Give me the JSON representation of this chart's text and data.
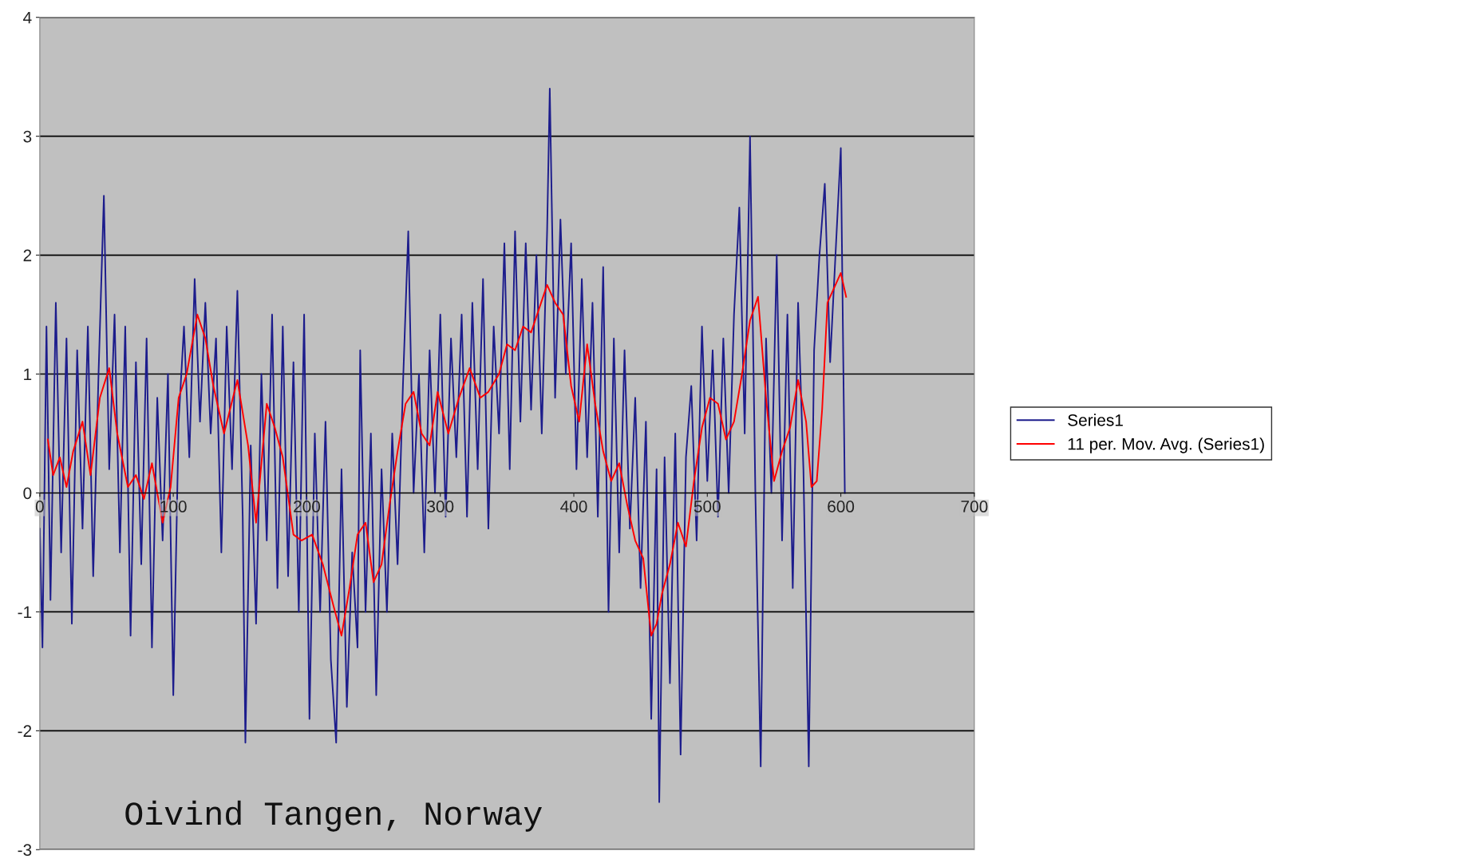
{
  "chart_data": {
    "type": "line",
    "series": [
      {
        "name": "Series1",
        "color": "#1c1c8c",
        "x": [
          0,
          2,
          5,
          8,
          12,
          16,
          20,
          24,
          28,
          32,
          36,
          40,
          44,
          48,
          52,
          56,
          60,
          64,
          68,
          72,
          76,
          80,
          84,
          88,
          92,
          96,
          100,
          104,
          108,
          112,
          116,
          120,
          124,
          128,
          132,
          136,
          140,
          144,
          148,
          152,
          154,
          158,
          162,
          166,
          170,
          174,
          178,
          182,
          186,
          190,
          194,
          198,
          202,
          206,
          210,
          214,
          218,
          222,
          226,
          230,
          234,
          238,
          240,
          244,
          248,
          252,
          256,
          260,
          264,
          268,
          272,
          276,
          280,
          284,
          288,
          292,
          296,
          300,
          304,
          308,
          312,
          316,
          320,
          324,
          328,
          332,
          336,
          340,
          344,
          348,
          352,
          356,
          360,
          364,
          368,
          372,
          376,
          380,
          382,
          386,
          390,
          394,
          398,
          402,
          406,
          410,
          414,
          418,
          422,
          426,
          430,
          434,
          438,
          442,
          446,
          450,
          454,
          458,
          462,
          464,
          468,
          472,
          476,
          480,
          484,
          488,
          492,
          496,
          500,
          504,
          508,
          512,
          516,
          520,
          524,
          528,
          532,
          536,
          540,
          544,
          548,
          552,
          556,
          560,
          564,
          568,
          572,
          576,
          580,
          584,
          588,
          592,
          596,
          600,
          603
        ],
        "values": [
          -0.3,
          -1.3,
          1.4,
          -0.9,
          1.6,
          -0.5,
          1.3,
          -1.1,
          1.2,
          -0.3,
          1.4,
          -0.7,
          1.0,
          2.5,
          0.2,
          1.5,
          -0.5,
          1.4,
          -1.2,
          1.1,
          -0.6,
          1.3,
          -1.3,
          0.8,
          -0.4,
          1.0,
          -1.7,
          0.6,
          1.4,
          0.3,
          1.8,
          0.6,
          1.6,
          0.5,
          1.3,
          -0.5,
          1.4,
          0.2,
          1.7,
          -0.2,
          -2.1,
          0.4,
          -1.1,
          1.0,
          -0.4,
          1.5,
          -0.8,
          1.4,
          -0.7,
          1.1,
          -1.0,
          1.5,
          -1.9,
          0.5,
          -1.0,
          0.6,
          -1.4,
          -2.1,
          0.2,
          -1.8,
          -0.5,
          -1.3,
          1.2,
          -1.0,
          0.5,
          -1.7,
          0.2,
          -1.0,
          0.5,
          -0.6,
          0.9,
          2.2,
          0.0,
          1.0,
          -0.5,
          1.2,
          0.0,
          1.5,
          -0.2,
          1.3,
          0.3,
          1.5,
          -0.2,
          1.6,
          0.2,
          1.8,
          -0.3,
          1.4,
          0.5,
          2.1,
          0.2,
          2.2,
          0.6,
          2.1,
          0.7,
          2.0,
          0.5,
          2.2,
          3.4,
          0.8,
          2.3,
          1.0,
          2.1,
          0.2,
          1.8,
          0.3,
          1.6,
          -0.2,
          1.9,
          -1.0,
          1.3,
          -0.5,
          1.2,
          -0.3,
          0.8,
          -0.8,
          0.6,
          -1.9,
          0.2,
          -2.6,
          0.3,
          -1.6,
          0.5,
          -2.2,
          0.3,
          0.9,
          -0.4,
          1.4,
          0.1,
          1.2,
          -0.2,
          1.3,
          0.0,
          1.5,
          2.4,
          0.5,
          3.0,
          0.0,
          -2.3,
          1.3,
          0.0,
          2.0,
          -0.4,
          1.5,
          -0.8,
          1.6,
          0.2,
          -2.3,
          1.2,
          2.0,
          2.6,
          1.1,
          2.0,
          2.9,
          0.0
        ]
      },
      {
        "name": "11 per. Mov. Avg. (Series1)",
        "color": "#ff0000",
        "x": [
          6,
          10,
          15,
          20,
          25,
          32,
          38,
          45,
          52,
          58,
          66,
          72,
          78,
          84,
          92,
          98,
          104,
          110,
          118,
          124,
          130,
          138,
          148,
          156,
          162,
          170,
          176,
          182,
          190,
          196,
          204,
          212,
          220,
          226,
          232,
          238,
          244,
          250,
          256,
          262,
          268,
          274,
          280,
          286,
          292,
          298,
          306,
          314,
          322,
          330,
          336,
          344,
          350,
          356,
          362,
          368,
          374,
          380,
          386,
          392,
          398,
          404,
          410,
          416,
          422,
          428,
          434,
          440,
          446,
          452,
          458,
          462,
          466,
          472,
          478,
          484,
          490,
          496,
          502,
          508,
          514,
          520,
          526,
          532,
          538,
          544,
          550,
          556,
          562,
          568,
          574,
          578,
          582,
          586,
          590,
          596,
          600,
          604
        ],
        "values": [
          0.45,
          0.15,
          0.3,
          0.05,
          0.35,
          0.6,
          0.15,
          0.8,
          1.05,
          0.5,
          0.05,
          0.15,
          -0.05,
          0.25,
          -0.25,
          0.05,
          0.8,
          1.0,
          1.5,
          1.3,
          0.9,
          0.5,
          0.95,
          0.4,
          -0.25,
          0.75,
          0.55,
          0.3,
          -0.35,
          -0.4,
          -0.35,
          -0.6,
          -0.95,
          -1.2,
          -0.8,
          -0.35,
          -0.25,
          -0.75,
          -0.6,
          -0.1,
          0.35,
          0.75,
          0.85,
          0.5,
          0.4,
          0.85,
          0.5,
          0.8,
          1.05,
          0.8,
          0.85,
          1.0,
          1.25,
          1.2,
          1.4,
          1.35,
          1.55,
          1.75,
          1.6,
          1.5,
          0.9,
          0.6,
          1.25,
          0.75,
          0.35,
          0.1,
          0.25,
          -0.1,
          -0.4,
          -0.55,
          -1.2,
          -1.1,
          -0.85,
          -0.6,
          -0.25,
          -0.45,
          0.1,
          0.55,
          0.8,
          0.75,
          0.45,
          0.6,
          1.0,
          1.45,
          1.65,
          0.8,
          0.1,
          0.35,
          0.55,
          0.95,
          0.6,
          0.05,
          0.1,
          0.7,
          1.6,
          1.75,
          1.85,
          1.65
        ]
      }
    ],
    "xlim": [
      0,
      700
    ],
    "xticks": [
      0,
      100,
      200,
      300,
      400,
      500,
      600,
      700
    ],
    "ylim": [
      -3,
      4
    ],
    "yticks": [
      -3,
      -2,
      -1,
      0,
      1,
      2,
      3,
      4
    ],
    "grid": "y",
    "legend": "right",
    "annotations": [
      "Oivind Tangen, Norway"
    ]
  }
}
